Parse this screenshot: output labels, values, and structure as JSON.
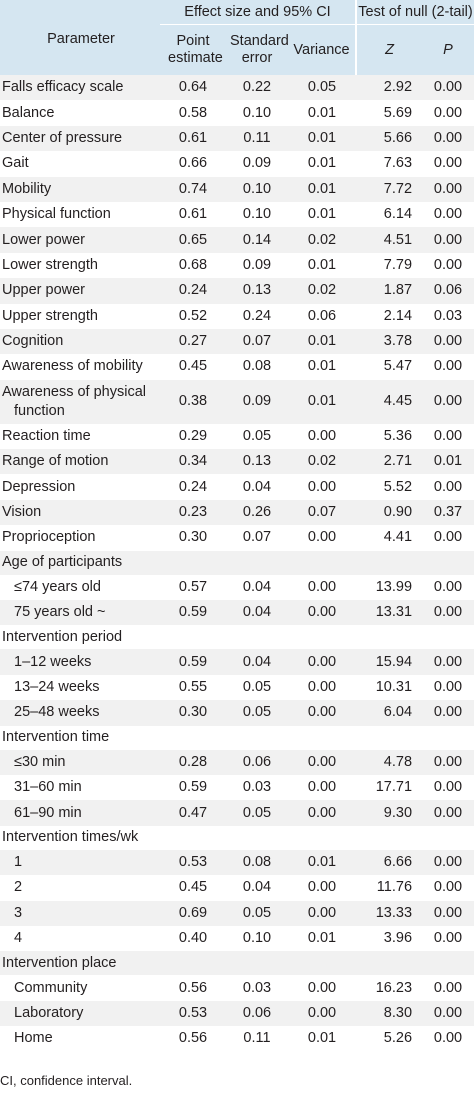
{
  "header": {
    "parameter": "Parameter",
    "group_effect": "Effect size and 95% CI",
    "group_test": "Test of null (2-tail)",
    "col_point": "Point estimate",
    "col_se": "Standard error",
    "col_var": "Variance",
    "col_z": "Z",
    "col_p": "P"
  },
  "rows": [
    {
      "label": "Falls efficacy scale",
      "point": "0.64",
      "se": "0.22",
      "var": "0.05",
      "z": "2.92",
      "p": "0.00"
    },
    {
      "label": "Balance",
      "point": "0.58",
      "se": "0.10",
      "var": "0.01",
      "z": "5.69",
      "p": "0.00"
    },
    {
      "label": "Center of pressure",
      "point": "0.61",
      "se": "0.11",
      "var": "0.01",
      "z": "5.66",
      "p": "0.00"
    },
    {
      "label": "Gait",
      "point": "0.66",
      "se": "0.09",
      "var": "0.01",
      "z": "7.63",
      "p": "0.00"
    },
    {
      "label": "Mobility",
      "point": "0.74",
      "se": "0.10",
      "var": "0.01",
      "z": "7.72",
      "p": "0.00"
    },
    {
      "label": "Physical function",
      "point": "0.61",
      "se": "0.10",
      "var": "0.01",
      "z": "6.14",
      "p": "0.00"
    },
    {
      "label": "Lower power",
      "point": "0.65",
      "se": "0.14",
      "var": "0.02",
      "z": "4.51",
      "p": "0.00"
    },
    {
      "label": "Lower strength",
      "point": "0.68",
      "se": "0.09",
      "var": "0.01",
      "z": "7.79",
      "p": "0.00"
    },
    {
      "label": "Upper power",
      "point": "0.24",
      "se": "0.13",
      "var": "0.02",
      "z": "1.87",
      "p": "0.06"
    },
    {
      "label": "Upper strength",
      "point": "0.52",
      "se": "0.24",
      "var": "0.06",
      "z": "2.14",
      "p": "0.03"
    },
    {
      "label": "Cognition",
      "point": "0.27",
      "se": "0.07",
      "var": "0.01",
      "z": "3.78",
      "p": "0.00"
    },
    {
      "label": "Awareness of mobility",
      "point": "0.45",
      "se": "0.08",
      "var": "0.01",
      "z": "5.47",
      "p": "0.00"
    },
    {
      "label": "Awareness of physical",
      "label2": "function",
      "point": "0.38",
      "se": "0.09",
      "var": "0.01",
      "z": "4.45",
      "p": "0.00"
    },
    {
      "label": "Reaction time",
      "point": "0.29",
      "se": "0.05",
      "var": "0.00",
      "z": "5.36",
      "p": "0.00"
    },
    {
      "label": "Range of motion",
      "point": "0.34",
      "se": "0.13",
      "var": "0.02",
      "z": "2.71",
      "p": "0.01"
    },
    {
      "label": "Depression",
      "point": "0.24",
      "se": "0.04",
      "var": "0.00",
      "z": "5.52",
      "p": "0.00"
    },
    {
      "label": "Vision",
      "point": "0.23",
      "se": "0.26",
      "var": "0.07",
      "z": "0.90",
      "p": "0.37"
    },
    {
      "label": "Proprioception",
      "point": "0.30",
      "se": "0.07",
      "var": "0.00",
      "z": "4.41",
      "p": "0.00"
    },
    {
      "label": "Age of participants",
      "group": true
    },
    {
      "label": "≤74 years old",
      "sub": true,
      "point": "0.57",
      "se": "0.04",
      "var": "0.00",
      "z": "13.99",
      "p": "0.00"
    },
    {
      "label": "75 years old ~",
      "sub": true,
      "point": "0.59",
      "se": "0.04",
      "var": "0.00",
      "z": "13.31",
      "p": "0.00"
    },
    {
      "label": "Intervention period",
      "group": true
    },
    {
      "label": "1–12 weeks",
      "sub": true,
      "point": "0.59",
      "se": "0.04",
      "var": "0.00",
      "z": "15.94",
      "p": "0.00"
    },
    {
      "label": "13–24 weeks",
      "sub": true,
      "point": "0.55",
      "se": "0.05",
      "var": "0.00",
      "z": "10.31",
      "p": "0.00"
    },
    {
      "label": "25–48 weeks",
      "sub": true,
      "point": "0.30",
      "se": "0.05",
      "var": "0.00",
      "z": "6.04",
      "p": "0.00"
    },
    {
      "label": "Intervention time",
      "group": true
    },
    {
      "label": "≤30 min",
      "sub": true,
      "point": "0.28",
      "se": "0.06",
      "var": "0.00",
      "z": "4.78",
      "p": "0.00"
    },
    {
      "label": "31–60 min",
      "sub": true,
      "point": "0.59",
      "se": "0.03",
      "var": "0.00",
      "z": "17.71",
      "p": "0.00"
    },
    {
      "label": "61–90 min",
      "sub": true,
      "point": "0.47",
      "se": "0.05",
      "var": "0.00",
      "z": "9.30",
      "p": "0.00"
    },
    {
      "label": "Intervention times/wk",
      "group": true
    },
    {
      "label": "1",
      "sub": true,
      "point": "0.53",
      "se": "0.08",
      "var": "0.01",
      "z": "6.66",
      "p": "0.00"
    },
    {
      "label": "2",
      "sub": true,
      "point": "0.45",
      "se": "0.04",
      "var": "0.00",
      "z": "11.76",
      "p": "0.00"
    },
    {
      "label": "3",
      "sub": true,
      "point": "0.69",
      "se": "0.05",
      "var": "0.00",
      "z": "13.33",
      "p": "0.00"
    },
    {
      "label": "4",
      "sub": true,
      "point": "0.40",
      "se": "0.10",
      "var": "0.01",
      "z": "3.96",
      "p": "0.00"
    },
    {
      "label": "Intervention place",
      "group": true
    },
    {
      "label": "Community",
      "sub": true,
      "point": "0.56",
      "se": "0.03",
      "var": "0.00",
      "z": "16.23",
      "p": "0.00"
    },
    {
      "label": "Laboratory",
      "sub": true,
      "point": "0.53",
      "se": "0.06",
      "var": "0.00",
      "z": "8.30",
      "p": "0.00"
    },
    {
      "label": "Home",
      "sub": true,
      "point": "0.56",
      "se": "0.11",
      "var": "0.01",
      "z": "5.26",
      "p": "0.00"
    }
  ],
  "footnote": "CI, confidence interval."
}
